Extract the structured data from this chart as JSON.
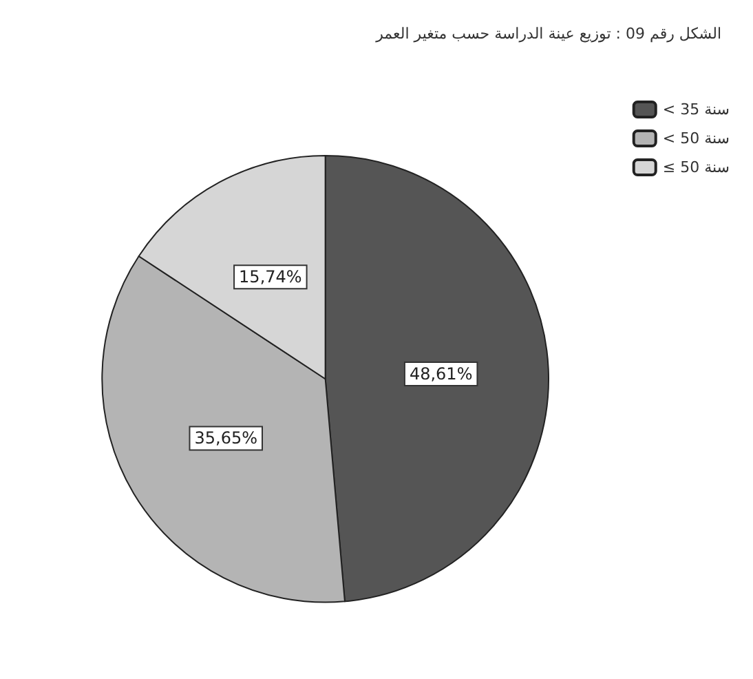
{
  "chart_data": {
    "type": "pie",
    "title": "الشكل رقم 09 : توزيع عينة الدراسة حسب متغير العمر",
    "categories": [
      "< 35 سنة",
      "< 50 سنة",
      "≤ 50 سنة"
    ],
    "values": [
      48.61,
      35.65,
      15.74
    ],
    "value_labels": [
      "48,61%",
      "35,65%",
      "15,74%"
    ],
    "colors": [
      "#555555",
      "#b4b4b4",
      "#d6d6d6"
    ],
    "legend": "top right"
  }
}
